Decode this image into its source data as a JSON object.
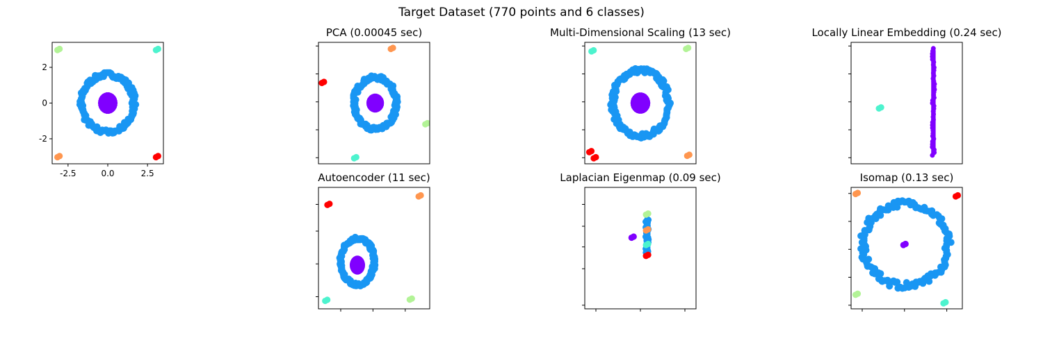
{
  "figure": {
    "suptitle": "Target Dataset (770 points and 6 classes)"
  },
  "colors": {
    "class_0": "#8000ff",
    "class_1": "#1996f3",
    "class_2": "#4df3ce",
    "class_3": "#b2f396",
    "class_4": "#ff964f",
    "class_5": "#ff0000"
  },
  "chart_data": [
    {
      "id": "target",
      "type": "scatter",
      "title": "",
      "xlim": [
        -3.5,
        3.5
      ],
      "ylim": [
        -3.4,
        3.4
      ],
      "xticks": [
        -2.5,
        0.0,
        2.5
      ],
      "xtick_labels": [
        "-2.5",
        "0.0",
        "2.5"
      ],
      "yticks": [
        -2,
        0,
        2
      ],
      "ytick_labels": [
        "-2",
        "0",
        "2"
      ],
      "clusters": [
        {
          "class": 1,
          "shape": "ring",
          "cx": 0.0,
          "cy": 0.0,
          "rx": 1.65,
          "ry": 1.6
        },
        {
          "class": 0,
          "shape": "blob",
          "cx": 0.0,
          "cy": 0.0,
          "rx": 0.55,
          "ry": 0.55
        },
        {
          "class": 3,
          "shape": "dot",
          "cx": -3.1,
          "cy": 3.0
        },
        {
          "class": 2,
          "shape": "dot",
          "cx": 3.1,
          "cy": 3.0
        },
        {
          "class": 4,
          "shape": "dot",
          "cx": -3.1,
          "cy": -3.0
        },
        {
          "class": 5,
          "shape": "dot",
          "cx": 3.1,
          "cy": -3.0
        }
      ]
    },
    {
      "id": "pca",
      "type": "scatter",
      "title": "PCA (0.00045 sec)",
      "xlim": [
        0,
        1
      ],
      "ylim": [
        0,
        1
      ],
      "xticks": [],
      "yticks": [
        0.05,
        0.28,
        0.51,
        0.74,
        0.97
      ],
      "clusters": [
        {
          "class": 1,
          "shape": "ring",
          "cx": 0.51,
          "cy": 0.5,
          "rx": 0.19,
          "ry": 0.21
        },
        {
          "class": 0,
          "shape": "blob",
          "cx": 0.51,
          "cy": 0.5,
          "rx": 0.07,
          "ry": 0.07
        },
        {
          "class": 4,
          "shape": "dot",
          "cx": 0.66,
          "cy": 0.95
        },
        {
          "class": 5,
          "shape": "dot",
          "cx": 0.04,
          "cy": 0.67
        },
        {
          "class": 3,
          "shape": "dot",
          "cx": 0.97,
          "cy": 0.33
        },
        {
          "class": 2,
          "shape": "dot",
          "cx": 0.33,
          "cy": 0.05
        }
      ]
    },
    {
      "id": "mds",
      "type": "scatter",
      "title": "Multi-Dimensional Scaling (13 sec)",
      "xlim": [
        0,
        1
      ],
      "ylim": [
        0,
        1
      ],
      "xticks": [],
      "yticks": [
        0.05,
        0.28,
        0.51,
        0.74,
        0.97
      ],
      "clusters": [
        {
          "class": 1,
          "shape": "ring",
          "cx": 0.5,
          "cy": 0.5,
          "rx": 0.25,
          "ry": 0.27
        },
        {
          "class": 0,
          "shape": "blob",
          "cx": 0.5,
          "cy": 0.5,
          "rx": 0.08,
          "ry": 0.08
        },
        {
          "class": 2,
          "shape": "dot",
          "cx": 0.07,
          "cy": 0.93
        },
        {
          "class": 3,
          "shape": "dot",
          "cx": 0.92,
          "cy": 0.95
        },
        {
          "class": 5,
          "shape": "dot",
          "cx": 0.05,
          "cy": 0.1
        },
        {
          "class": 5,
          "shape": "dot",
          "cx": 0.09,
          "cy": 0.05
        },
        {
          "class": 4,
          "shape": "dot",
          "cx": 0.93,
          "cy": 0.07
        }
      ]
    },
    {
      "id": "lle",
      "type": "scatter",
      "title": "Locally Linear Embedding (0.24 sec)",
      "xlim": [
        0,
        1
      ],
      "ylim": [
        0,
        1
      ],
      "xticks": [],
      "yticks": [
        0.05,
        0.28,
        0.51,
        0.74,
        0.97
      ],
      "clusters": [
        {
          "class": 0,
          "shape": "bar",
          "cx": 0.74,
          "cy": 0.51,
          "rx": 0.02,
          "ry": 0.44
        },
        {
          "class": 2,
          "shape": "dot",
          "cx": 0.26,
          "cy": 0.46
        }
      ]
    },
    {
      "id": "autoencoder",
      "type": "scatter",
      "title": "Autoencoder (11 sec)",
      "xlim": [
        0,
        1
      ],
      "ylim": [
        0,
        1
      ],
      "xticks": [
        0.2,
        0.49,
        0.78
      ],
      "yticks": [
        0.1,
        0.37,
        0.64,
        0.86
      ],
      "clusters": [
        {
          "class": 1,
          "shape": "ring",
          "cx": 0.35,
          "cy": 0.39,
          "rx": 0.15,
          "ry": 0.19
        },
        {
          "class": 0,
          "shape": "blob",
          "cx": 0.35,
          "cy": 0.36,
          "rx": 0.06,
          "ry": 0.07
        },
        {
          "class": 5,
          "shape": "dot",
          "cx": 0.09,
          "cy": 0.86
        },
        {
          "class": 4,
          "shape": "dot",
          "cx": 0.91,
          "cy": 0.93
        },
        {
          "class": 3,
          "shape": "dot",
          "cx": 0.83,
          "cy": 0.08
        },
        {
          "class": 2,
          "shape": "dot",
          "cx": 0.07,
          "cy": 0.07
        }
      ]
    },
    {
      "id": "laplacian",
      "type": "scatter",
      "title": "Laplacian Eigenmap (0.09 sec)",
      "xlim": [
        0,
        1
      ],
      "ylim": [
        0,
        1
      ],
      "xticks": [
        0.1,
        0.5,
        0.9
      ],
      "yticks": [
        0.03,
        0.33,
        0.51,
        0.68,
        0.86
      ],
      "clusters": [
        {
          "class": 1,
          "shape": "bar",
          "cx": 0.56,
          "cy": 0.59,
          "rx": 0.03,
          "ry": 0.15
        },
        {
          "class": 0,
          "shape": "dot",
          "cx": 0.43,
          "cy": 0.59
        },
        {
          "class": 3,
          "shape": "dot",
          "cx": 0.56,
          "cy": 0.78
        },
        {
          "class": 4,
          "shape": "dot",
          "cx": 0.56,
          "cy": 0.65
        },
        {
          "class": 2,
          "shape": "dot",
          "cx": 0.56,
          "cy": 0.53
        },
        {
          "class": 5,
          "shape": "dot",
          "cx": 0.56,
          "cy": 0.44
        }
      ]
    },
    {
      "id": "isomap",
      "type": "scatter",
      "title": "Isomap (0.13 sec)",
      "xlim": [
        0,
        1
      ],
      "ylim": [
        0,
        1
      ],
      "xticks": [
        0.1,
        0.48,
        0.86
      ],
      "yticks": [
        0.03,
        0.26,
        0.49,
        0.72,
        0.95
      ],
      "clusters": [
        {
          "class": 1,
          "shape": "ring",
          "cx": 0.49,
          "cy": 0.53,
          "rx": 0.38,
          "ry": 0.34
        },
        {
          "class": 0,
          "shape": "dot",
          "cx": 0.48,
          "cy": 0.53
        },
        {
          "class": 4,
          "shape": "dot",
          "cx": 0.05,
          "cy": 0.95
        },
        {
          "class": 5,
          "shape": "dot",
          "cx": 0.95,
          "cy": 0.93
        },
        {
          "class": 3,
          "shape": "dot",
          "cx": 0.05,
          "cy": 0.12
        },
        {
          "class": 2,
          "shape": "dot",
          "cx": 0.84,
          "cy": 0.05
        }
      ]
    }
  ]
}
